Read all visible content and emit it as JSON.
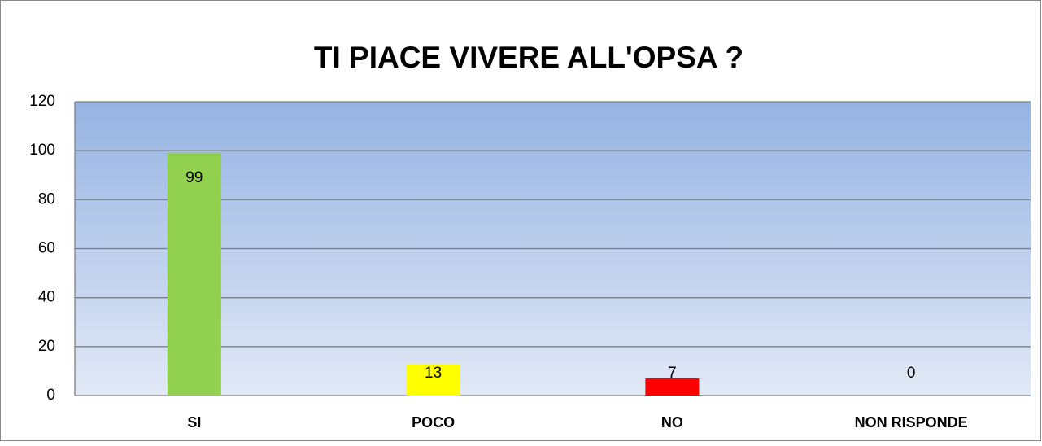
{
  "chart_data": {
    "type": "bar",
    "title": "TI PIACE VIVERE ALL'OPSA ?",
    "categories": [
      "SI",
      "POCO",
      "NO",
      "NON RISPONDE"
    ],
    "values": [
      99,
      13,
      7,
      0
    ],
    "colors": [
      "#92d050",
      "#ffff00",
      "#ff0000",
      "#4f81bd"
    ],
    "ylim": [
      0,
      120
    ],
    "yticks": [
      0,
      20,
      40,
      60,
      80,
      100,
      120
    ],
    "grid": true
  }
}
